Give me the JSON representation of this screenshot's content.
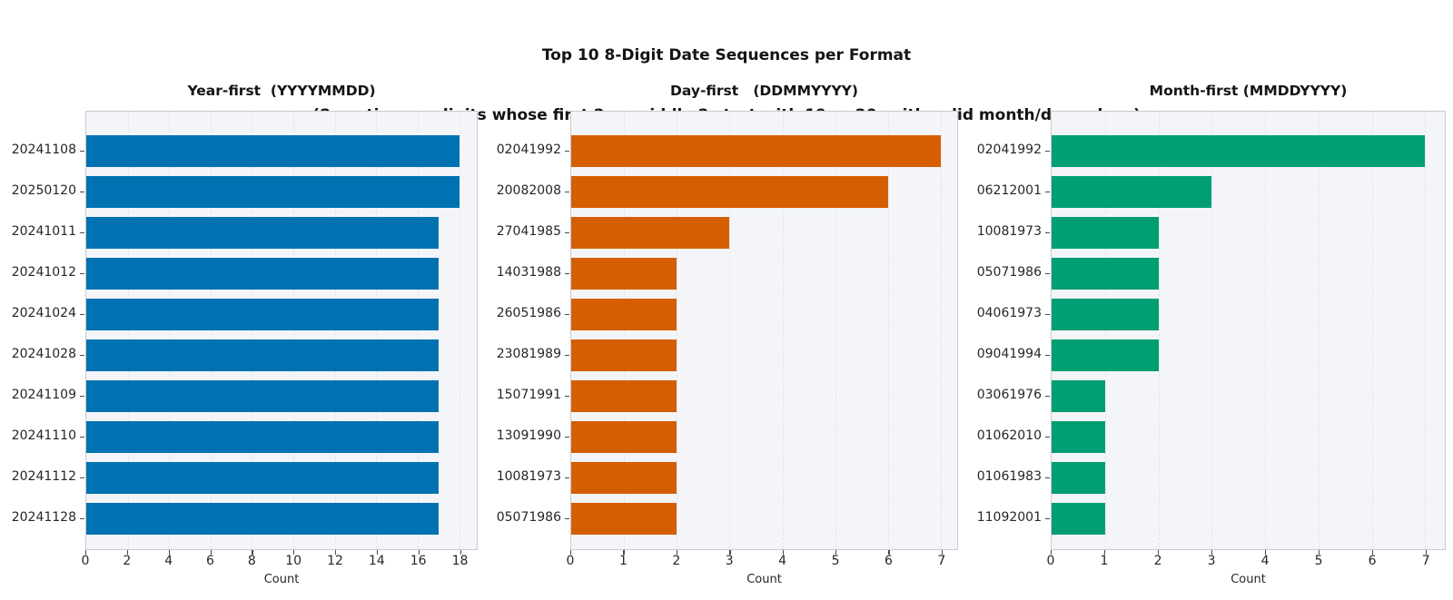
{
  "header": {
    "title": "Top 10 8-Digit Date Sequences per Format",
    "subtitle": "(8 contiguous digits whose first 2 or middle 2 start with 19 or 20, with valid month/day values)"
  },
  "chart_data": [
    {
      "type": "bar",
      "orientation": "horizontal",
      "title": "Year-first  (YYYYMMDD)",
      "categories": [
        "20241108",
        "20250120",
        "20241011",
        "20241012",
        "20241024",
        "20241028",
        "20241109",
        "20241110",
        "20241112",
        "20241128"
      ],
      "values": [
        18,
        18,
        17,
        17,
        17,
        17,
        17,
        17,
        17,
        17
      ],
      "xlabel": "Count",
      "xticks": [
        0,
        2,
        4,
        6,
        8,
        10,
        12,
        14,
        16,
        18
      ],
      "xlim": [
        0,
        18.85
      ],
      "grid": true,
      "bar_color": "#0072B2"
    },
    {
      "type": "bar",
      "orientation": "horizontal",
      "title": "Day-first   (DDMMYYYY)",
      "categories": [
        "02041992",
        "20082008",
        "27041985",
        "14031988",
        "26051986",
        "23081989",
        "15071991",
        "13091990",
        "10081973",
        "05071986"
      ],
      "values": [
        7,
        6,
        3,
        2,
        2,
        2,
        2,
        2,
        2,
        2
      ],
      "xlabel": "Count",
      "xticks": [
        0,
        1,
        2,
        3,
        4,
        5,
        6,
        7
      ],
      "xlim": [
        0,
        7.31
      ],
      "grid": true,
      "bar_color": "#D55E00"
    },
    {
      "type": "bar",
      "orientation": "horizontal",
      "title": "Month-first (MMDDYYYY)",
      "categories": [
        "02041992",
        "06212001",
        "10081973",
        "05071986",
        "04061973",
        "09041994",
        "03061976",
        "01062010",
        "01061983",
        "11092001"
      ],
      "values": [
        7,
        3,
        2,
        2,
        2,
        2,
        1,
        1,
        1,
        1
      ],
      "xlabel": "Count",
      "xticks": [
        0,
        1,
        2,
        3,
        4,
        5,
        6,
        7
      ],
      "xlim": [
        0,
        7.37
      ],
      "grid": true,
      "bar_color": "#009E73"
    }
  ],
  "colors": {
    "figure_background": "#ffffff",
    "plot_background": "#f4f5f8",
    "grid": "#e2e4ea",
    "spine": "#c9cbd2",
    "tick_text": "#262626",
    "title_text": "#141414"
  }
}
